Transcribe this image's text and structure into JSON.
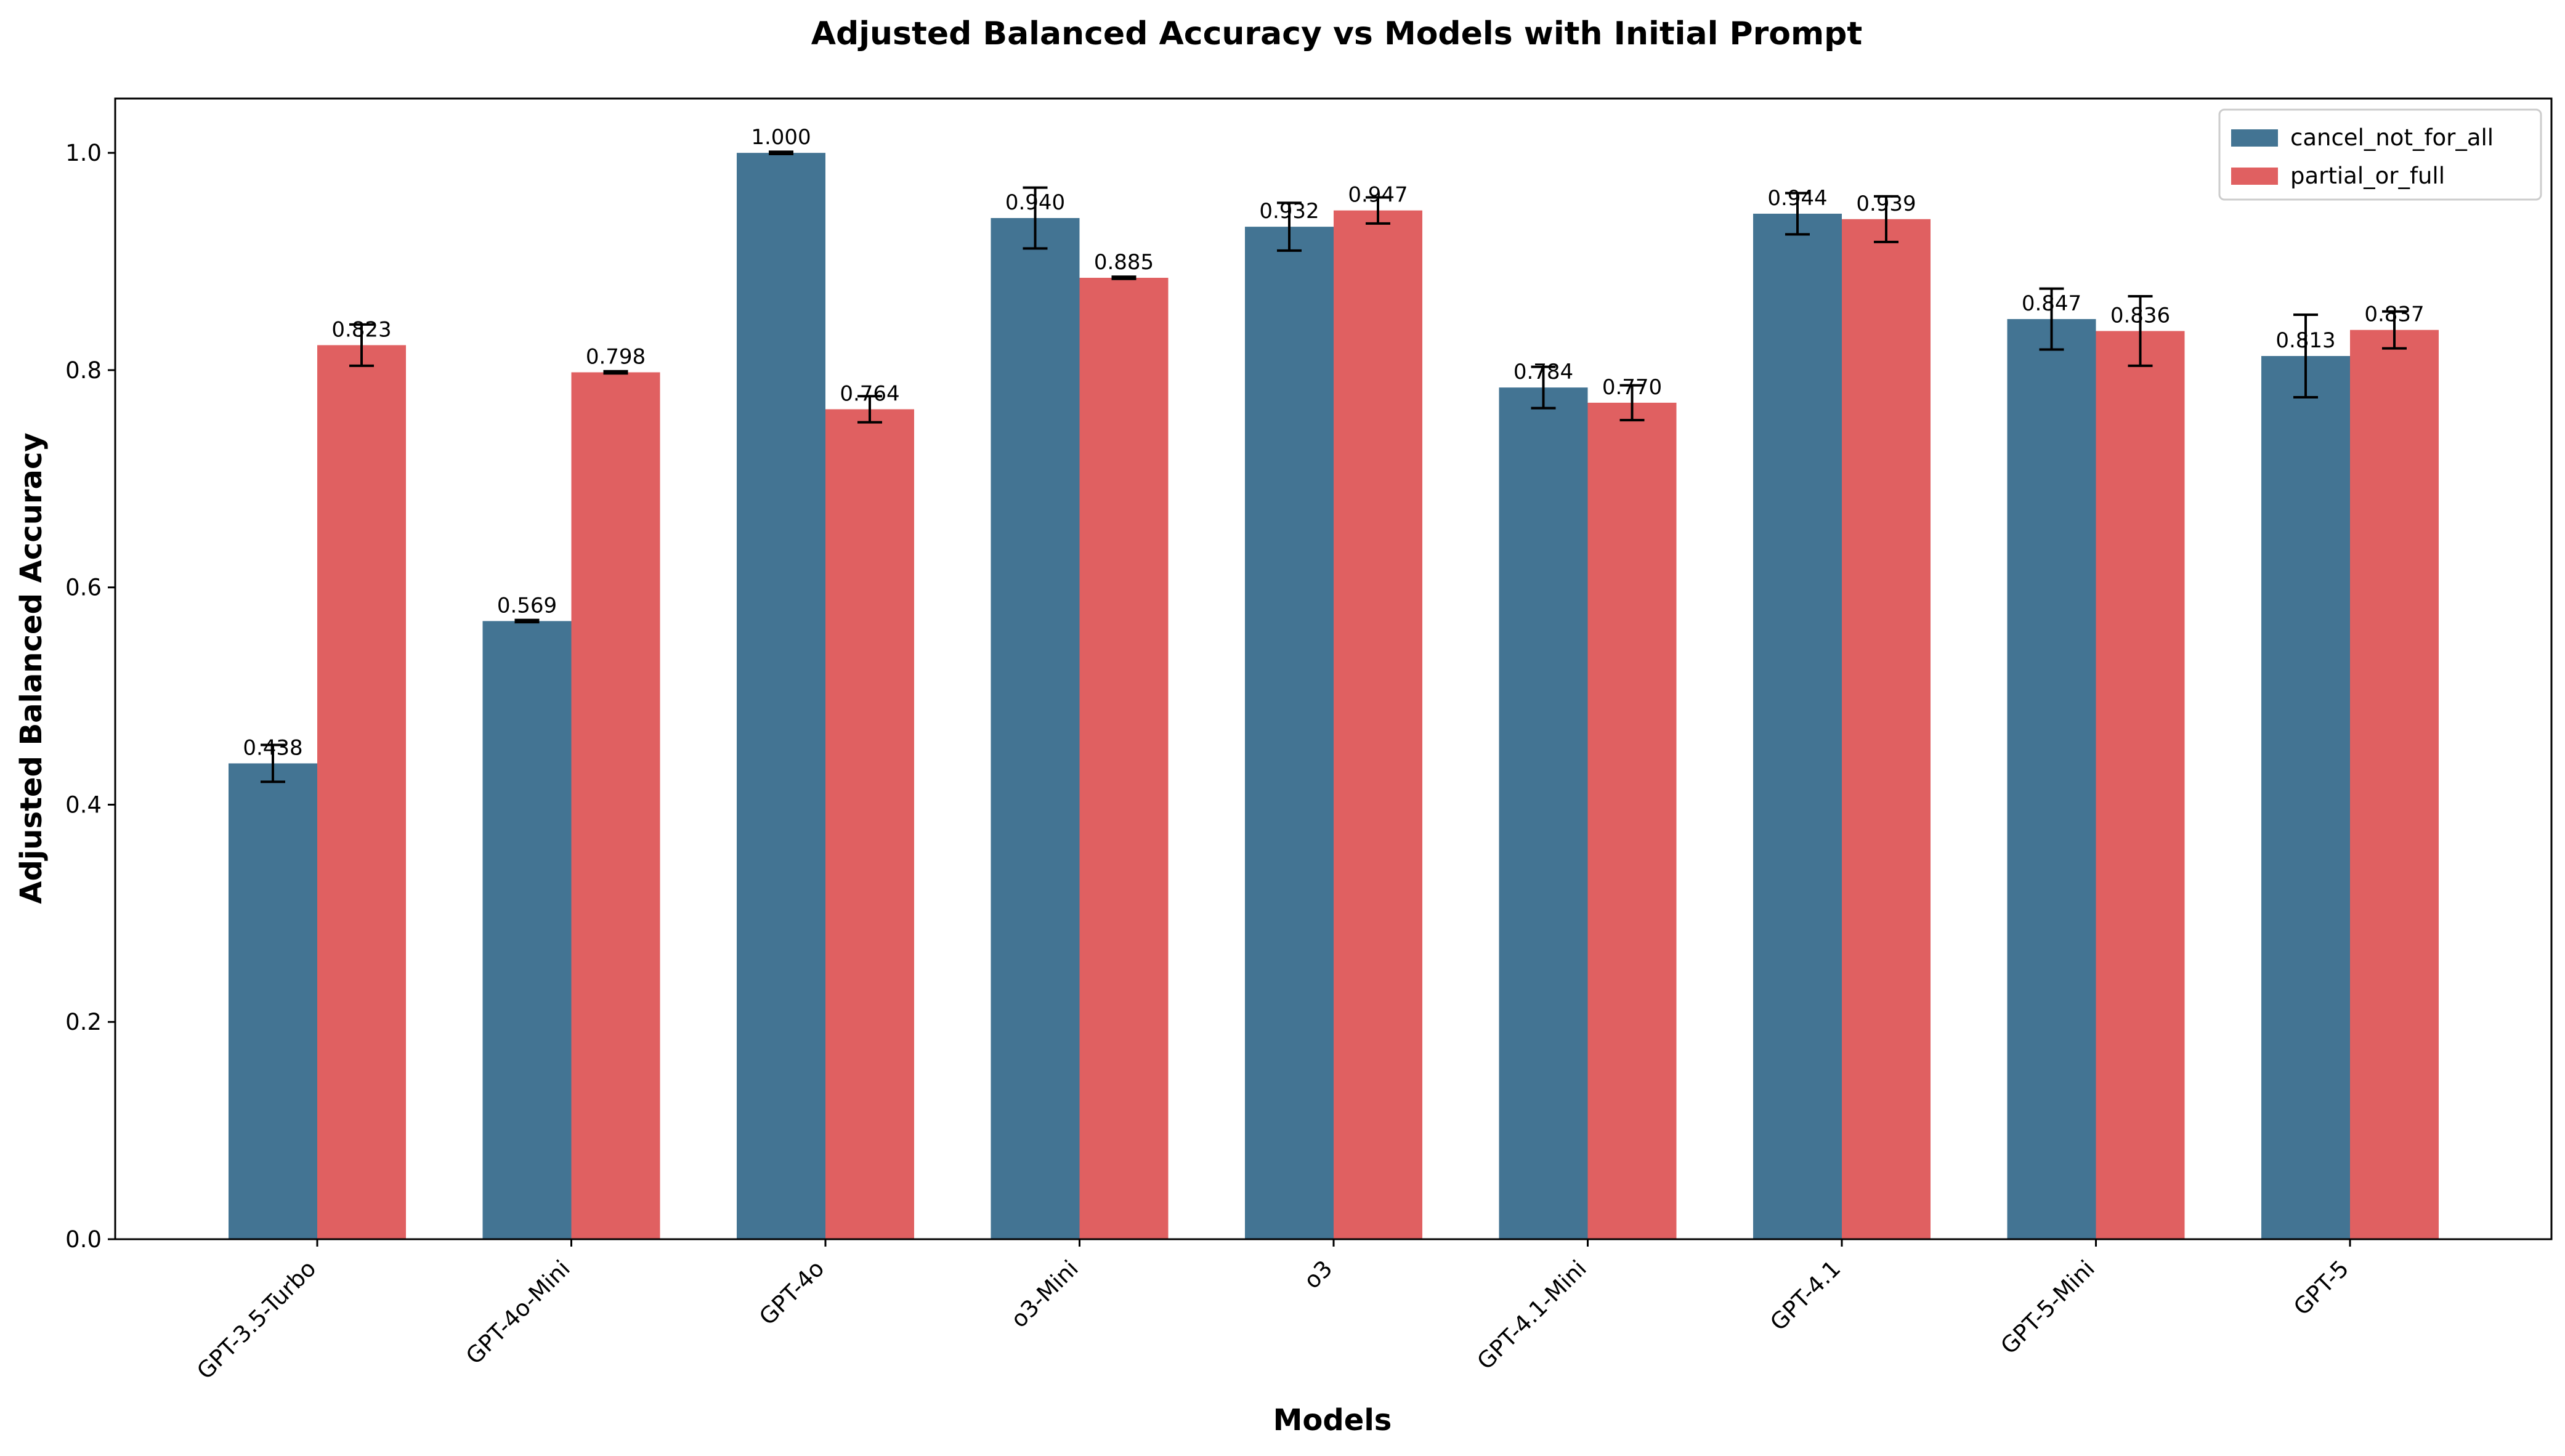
{
  "chart_data": {
    "type": "bar",
    "title": "Adjusted Balanced Accuracy vs Models with Initial Prompt",
    "xlabel": "Models",
    "ylabel": "Adjusted Balanced Accuracy",
    "ylim": [
      0,
      1.05
    ],
    "yticks": [
      "0.0",
      "0.2",
      "0.4",
      "0.6",
      "0.8",
      "1.0"
    ],
    "legend_position": "top-right",
    "grid": false,
    "categories": [
      "GPT-3.5-Turbo",
      "GPT-4o-Mini",
      "GPT-4o",
      "o3-Mini",
      "o3",
      "GPT-4.1-Mini",
      "GPT-4.1",
      "GPT-5-Mini",
      "GPT-5"
    ],
    "series": [
      {
        "name": "cancel_not_for_all",
        "color": "#437493",
        "values": [
          0.438,
          0.569,
          1.0,
          0.94,
          0.932,
          0.784,
          0.944,
          0.847,
          0.813
        ],
        "labels": [
          "0.438",
          "0.569",
          "1.000",
          "0.940",
          "0.932",
          "0.784",
          "0.944",
          "0.847",
          "0.813"
        ],
        "errors": [
          0.017,
          0.001,
          0.001,
          0.028,
          0.022,
          0.019,
          0.019,
          0.028,
          0.038
        ]
      },
      {
        "name": "partial_or_full",
        "color": "#E06061",
        "values": [
          0.823,
          0.798,
          0.764,
          0.885,
          0.947,
          0.77,
          0.939,
          0.836,
          0.837
        ],
        "labels": [
          "0.823",
          "0.798",
          "0.764",
          "0.885",
          "0.947",
          "0.770",
          "0.939",
          "0.836",
          "0.837"
        ],
        "errors": [
          0.019,
          0.001,
          0.012,
          0.001,
          0.012,
          0.016,
          0.021,
          0.032,
          0.017
        ]
      }
    ]
  }
}
